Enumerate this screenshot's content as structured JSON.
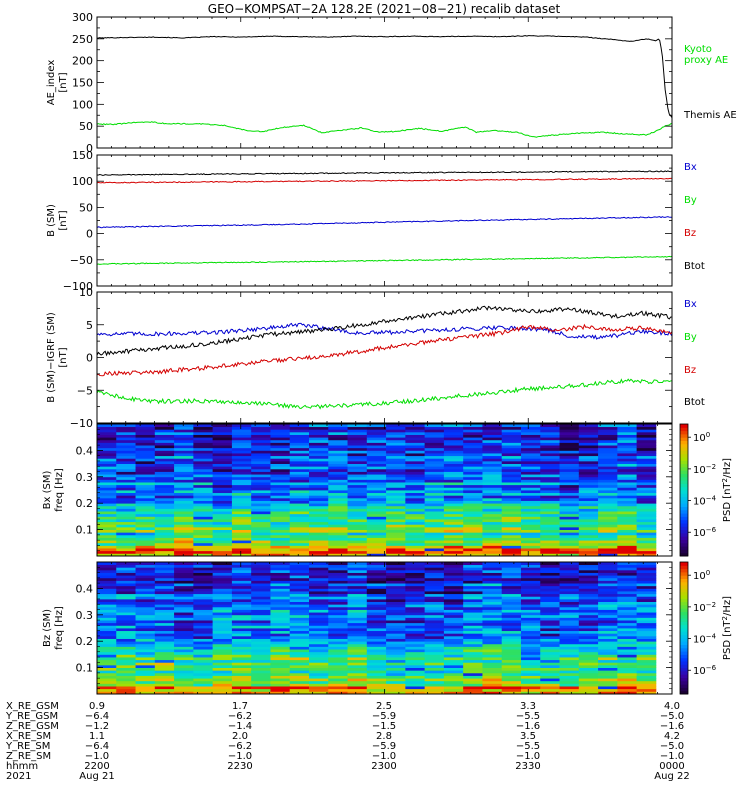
{
  "title": "GEO−KOMPSAT−2A 128.2E (2021−08−21) recalib dataset",
  "colors": {
    "black": "#000000",
    "red": "#d40000",
    "blue": "#0000d0",
    "green": "#00dd00"
  },
  "chart_data": [
    {
      "type": "line",
      "ylabel": [
        "AE_index",
        "[nT]"
      ],
      "ylim": [
        0,
        300
      ],
      "yticks": [
        "0",
        "50",
        "100",
        "150",
        "200",
        "250",
        "300"
      ],
      "x_range": [
        "2200",
        "0000"
      ],
      "series": [
        {
          "name": "Themis AE",
          "color": "black",
          "points": [
            [
              0,
              252
            ],
            [
              0.05,
              253
            ],
            [
              0.1,
              254
            ],
            [
              0.15,
              252
            ],
            [
              0.2,
              255
            ],
            [
              0.25,
              254
            ],
            [
              0.3,
              256
            ],
            [
              0.35,
              255
            ],
            [
              0.4,
              254
            ],
            [
              0.45,
              256
            ],
            [
              0.5,
              255
            ],
            [
              0.55,
              256
            ],
            [
              0.6,
              255
            ],
            [
              0.65,
              256
            ],
            [
              0.7,
              255
            ],
            [
              0.75,
              257
            ],
            [
              0.8,
              256
            ],
            [
              0.85,
              254
            ],
            [
              0.9,
              248
            ],
            [
              0.93,
              244
            ],
            [
              0.955,
              250
            ],
            [
              0.972,
              246
            ],
            [
              0.978,
              250
            ],
            [
              0.983,
              215
            ],
            [
              0.988,
              135
            ],
            [
              0.994,
              80
            ],
            [
              1.0,
              70
            ]
          ]
        },
        {
          "name": "Kyoto proxy AE",
          "color": "green",
          "points": [
            [
              0,
              55
            ],
            [
              0.03,
              54
            ],
            [
              0.06,
              58
            ],
            [
              0.09,
              60
            ],
            [
              0.12,
              56
            ],
            [
              0.18,
              55
            ],
            [
              0.22,
              52
            ],
            [
              0.26,
              40
            ],
            [
              0.29,
              38
            ],
            [
              0.32,
              47
            ],
            [
              0.36,
              52
            ],
            [
              0.39,
              35
            ],
            [
              0.42,
              40
            ],
            [
              0.46,
              46
            ],
            [
              0.49,
              36
            ],
            [
              0.52,
              38
            ],
            [
              0.56,
              45
            ],
            [
              0.6,
              38
            ],
            [
              0.64,
              48
            ],
            [
              0.66,
              36
            ],
            [
              0.69,
              40
            ],
            [
              0.73,
              36
            ],
            [
              0.76,
              25
            ],
            [
              0.8,
              30
            ],
            [
              0.84,
              34
            ],
            [
              0.88,
              36
            ],
            [
              0.92,
              32
            ],
            [
              0.955,
              30
            ],
            [
              0.975,
              40
            ],
            [
              0.99,
              52
            ],
            [
              1.0,
              55
            ]
          ]
        }
      ]
    },
    {
      "type": "line",
      "ylabel": [
        "B (SM)",
        "[nT]"
      ],
      "ylim": [
        -100,
        150
      ],
      "yticks": [
        "−100",
        "−50",
        "0",
        "50",
        "100",
        "150"
      ],
      "series": [
        {
          "name": "Bx",
          "color": "blue",
          "points": [
            [
              0,
              12
            ],
            [
              0.3,
              17
            ],
            [
              0.6,
              24
            ],
            [
              1.0,
              32
            ]
          ]
        },
        {
          "name": "By",
          "color": "green",
          "points": [
            [
              0,
              -58
            ],
            [
              0.4,
              -53
            ],
            [
              0.8,
              -47
            ],
            [
              1.0,
              -44
            ]
          ]
        },
        {
          "name": "Bz",
          "color": "red",
          "points": [
            [
              0,
              97
            ],
            [
              0.5,
              101
            ],
            [
              1.0,
              105
            ]
          ]
        },
        {
          "name": "Btot",
          "color": "black",
          "points": [
            [
              0,
              112
            ],
            [
              0.5,
              116
            ],
            [
              1.0,
              119
            ]
          ]
        }
      ]
    },
    {
      "type": "line",
      "ylabel": [
        "B (SM)−IGRF (SM)",
        "[nT]"
      ],
      "ylim": [
        -10,
        10
      ],
      "yticks": [
        "−10",
        "−5",
        "0",
        "5",
        "10"
      ],
      "series": [
        {
          "name": "Bx",
          "color": "blue",
          "points": [
            [
              0,
              3.6
            ],
            [
              0.1,
              3.6
            ],
            [
              0.2,
              3.8
            ],
            [
              0.3,
              4.5
            ],
            [
              0.35,
              5.0
            ],
            [
              0.4,
              4.5
            ],
            [
              0.45,
              3.7
            ],
            [
              0.5,
              3.8
            ],
            [
              0.6,
              4.2
            ],
            [
              0.7,
              4.6
            ],
            [
              0.78,
              4.3
            ],
            [
              0.82,
              3.3
            ],
            [
              0.88,
              3.0
            ],
            [
              0.95,
              4.0
            ],
            [
              1.0,
              3.6
            ]
          ]
        },
        {
          "name": "By",
          "color": "green",
          "points": [
            [
              0,
              -5.3
            ],
            [
              0.05,
              -6.2
            ],
            [
              0.1,
              -6.7
            ],
            [
              0.2,
              -6.6
            ],
            [
              0.3,
              -7.1
            ],
            [
              0.35,
              -7.6
            ],
            [
              0.45,
              -7.3
            ],
            [
              0.55,
              -6.6
            ],
            [
              0.65,
              -5.7
            ],
            [
              0.75,
              -4.8
            ],
            [
              0.85,
              -4.2
            ],
            [
              0.92,
              -3.5
            ],
            [
              1.0,
              -3.8
            ]
          ]
        },
        {
          "name": "Bz",
          "color": "red",
          "points": [
            [
              0,
              -2.5
            ],
            [
              0.1,
              -2.2
            ],
            [
              0.2,
              -1.5
            ],
            [
              0.3,
              -0.5
            ],
            [
              0.4,
              0.2
            ],
            [
              0.5,
              1.5
            ],
            [
              0.6,
              2.7
            ],
            [
              0.7,
              3.7
            ],
            [
              0.75,
              4.7
            ],
            [
              0.8,
              4.2
            ],
            [
              0.85,
              4.7
            ],
            [
              0.9,
              4.3
            ],
            [
              0.95,
              4.5
            ],
            [
              1.0,
              3.8
            ]
          ]
        },
        {
          "name": "Btot",
          "color": "black",
          "points": [
            [
              0,
              0.5
            ],
            [
              0.08,
              1.2
            ],
            [
              0.16,
              1.8
            ],
            [
              0.22,
              2.4
            ],
            [
              0.3,
              3.5
            ],
            [
              0.4,
              4.3
            ],
            [
              0.5,
              5.5
            ],
            [
              0.6,
              6.7
            ],
            [
              0.68,
              7.6
            ],
            [
              0.75,
              7.0
            ],
            [
              0.82,
              7.4
            ],
            [
              0.9,
              6.3
            ],
            [
              0.95,
              6.8
            ],
            [
              1.0,
              6.1
            ]
          ]
        }
      ]
    },
    {
      "type": "heatmap",
      "ylabel": [
        "Bx (SM)",
        "freq [Hz]"
      ],
      "ylim": [
        0,
        0.5
      ],
      "yticks": [
        "0.1",
        "0.2",
        "0.3",
        "0.4"
      ],
      "colorbar_label": "PSD [nT^2/Hz]",
      "colorbar_ticks": [
        "10^0",
        "10^−2",
        "10^−4",
        "10^−6"
      ],
      "columns": 29,
      "rows": 50,
      "seed": 7
    },
    {
      "type": "heatmap",
      "ylabel": [
        "Bz (SM)",
        "freq [Hz]"
      ],
      "ylim": [
        0,
        0.5
      ],
      "yticks": [
        "0.1",
        "0.2",
        "0.3",
        "0.4"
      ],
      "colorbar_label": "PSD [nT^2/Hz]",
      "colorbar_ticks": [
        "10^0",
        "10^−2",
        "10^−4",
        "10^−6"
      ],
      "columns": 29,
      "rows": 50,
      "seed": 19
    }
  ],
  "panel_legends": [
    [
      {
        "text": "Kyoto",
        "color": "green"
      },
      {
        "text": "proxy AE",
        "color": "green"
      },
      {
        "text": "Themis AE",
        "color": "black"
      }
    ],
    [
      {
        "text": "Bx",
        "color": "blue"
      },
      {
        "text": "By",
        "color": "green"
      },
      {
        "text": "Bz",
        "color": "red"
      },
      {
        "text": "Btot",
        "color": "black"
      }
    ],
    [
      {
        "text": "Bx",
        "color": "blue"
      },
      {
        "text": "By",
        "color": "green"
      },
      {
        "text": "Bz",
        "color": "red"
      },
      {
        "text": "Btot",
        "color": "black"
      }
    ]
  ],
  "ephemeris": {
    "labels": [
      "X_RE_GSM",
      "Y_RE_GSM",
      "Z_RE_GSM",
      "X_RE_SM",
      "Y_RE_SM",
      "Z_RE_SM",
      "hhmm",
      "2021"
    ],
    "columns": [
      [
        "0.9",
        "−6.4",
        "−1.2",
        "1.1",
        "−6.4",
        "−1.0",
        "2200",
        "Aug 21"
      ],
      [
        "1.7",
        "−6.2",
        "−1.4",
        "2.0",
        "−6.2",
        "−1.0",
        "2230",
        ""
      ],
      [
        "2.5",
        "−5.9",
        "−1.5",
        "2.8",
        "−5.9",
        "−1.0",
        "2300",
        ""
      ],
      [
        "3.3",
        "−5.5",
        "−1.6",
        "3.5",
        "−5.5",
        "−1.0",
        "2330",
        ""
      ],
      [
        "4.0",
        "−5.0",
        "−1.6",
        "4.2",
        "−5.0",
        "−1.0",
        "0000",
        "Aug 22"
      ]
    ]
  }
}
